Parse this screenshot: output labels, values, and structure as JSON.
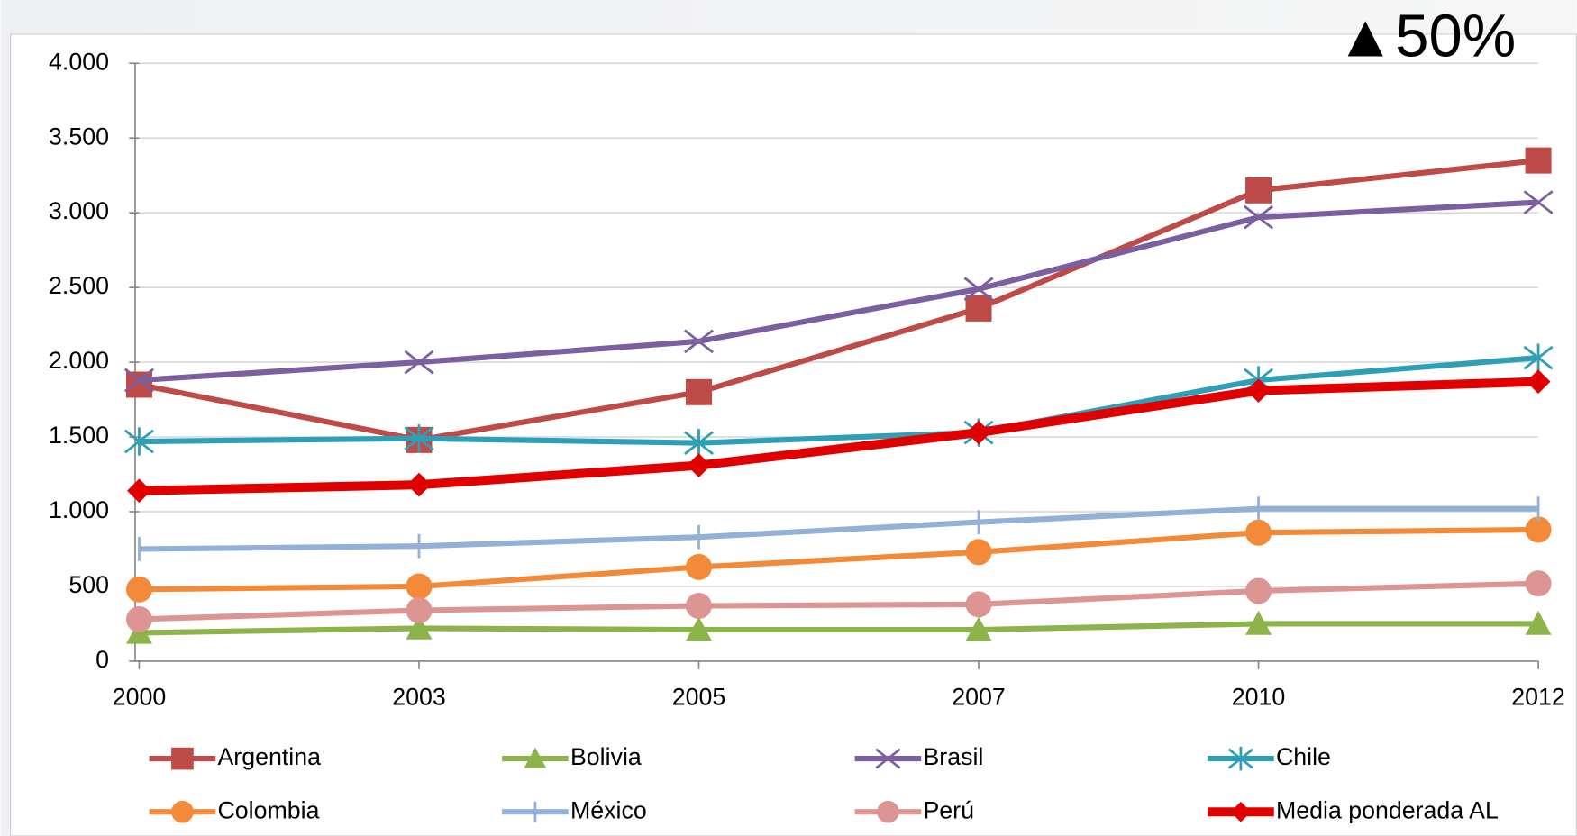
{
  "chart_data": {
    "type": "line",
    "annotation": "▲50%",
    "categories": [
      "2000",
      "2003",
      "2005",
      "2007",
      "2010",
      "2012"
    ],
    "ylim": [
      0,
      4000
    ],
    "yticks": [
      0,
      500,
      {
        "value": 1000,
        "label": "1.000"
      },
      {
        "value": 1500,
        "label": "1.500"
      },
      {
        "value": 2000,
        "label": "2.000"
      },
      {
        "value": 2500,
        "label": "2.500"
      },
      {
        "value": 3000,
        "label": "3.000"
      },
      {
        "value": 3500,
        "label": "3.500"
      },
      {
        "value": 4000,
        "label": "4.000"
      }
    ],
    "grid": true,
    "legend": "bottom",
    "series": [
      {
        "name": "Argentina",
        "color": "#be4b48",
        "marker": "square",
        "values": [
          1850,
          1480,
          1800,
          2360,
          3150,
          3350
        ]
      },
      {
        "name": "Bolivia",
        "color": "#8cb44a",
        "marker": "triangle",
        "values": [
          190,
          220,
          210,
          210,
          250,
          250
        ]
      },
      {
        "name": "Brasil",
        "color": "#7c5fa0",
        "marker": "x",
        "values": [
          1880,
          2000,
          2140,
          2490,
          2970,
          3070
        ]
      },
      {
        "name": "Chile",
        "color": "#2f9fb5",
        "marker": "star",
        "values": [
          1470,
          1490,
          1460,
          1530,
          1880,
          2030
        ]
      },
      {
        "name": "Colombia",
        "color": "#f38a3a",
        "marker": "circle",
        "values": [
          480,
          500,
          630,
          730,
          860,
          880
        ]
      },
      {
        "name": "México",
        "color": "#92b0d8",
        "marker": "dash",
        "values": [
          750,
          770,
          830,
          930,
          1020,
          1020
        ]
      },
      {
        "name": "Perú",
        "color": "#dc9593",
        "marker": "circle",
        "values": [
          280,
          340,
          370,
          380,
          470,
          520
        ]
      },
      {
        "name": "Media ponderada AL",
        "color": "#e00000",
        "marker": "diamond",
        "values": [
          1140,
          1180,
          1310,
          1530,
          1810,
          1870
        ]
      }
    ]
  }
}
